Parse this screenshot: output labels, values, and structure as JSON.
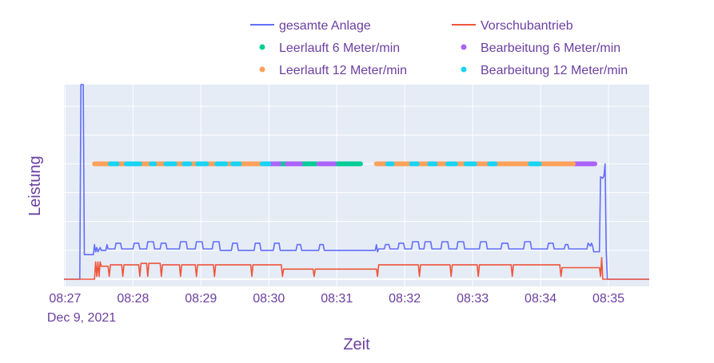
{
  "chart_data": {
    "type": "line",
    "xlabel": "Zeit",
    "ylabel": "Leistung",
    "x_date_label": "Dec 9, 2021",
    "x_ticks": [
      "08:27",
      "08:28",
      "08:29",
      "08:30",
      "08:31",
      "08:32",
      "08:33",
      "08:34",
      "08:35"
    ],
    "xlim": [
      "08:26:59",
      "08:35:36"
    ],
    "ylim": [
      -0.05,
      1.35
    ],
    "y_tick_labels_shown": false,
    "grid": true,
    "legend_position": "top",
    "series": [
      {
        "name": "gesamte Anlage",
        "kind": "line",
        "color": "#636efa",
        "points": [
          [
            "08:26:59",
            0
          ],
          [
            "08:27:13",
            0
          ],
          [
            "08:27:14",
            1.35
          ],
          [
            "08:27:16",
            1.35
          ],
          [
            "08:27:17",
            0.17
          ],
          [
            "08:27:25",
            0.17
          ],
          [
            "08:27:26",
            0.24
          ],
          [
            "08:27:27",
            0.19
          ],
          [
            "08:27:28",
            0.22
          ],
          [
            "08:27:29",
            0.19
          ],
          [
            "08:27:31",
            0.22
          ],
          [
            "08:27:32",
            0.2
          ],
          [
            "08:27:36",
            0.2
          ],
          [
            "08:27:37",
            0.24
          ],
          [
            "08:27:38",
            0.21
          ],
          [
            "08:27:44",
            0.21
          ],
          [
            "08:27:45",
            0.25
          ],
          [
            "08:27:49",
            0.25
          ],
          [
            "08:27:50",
            0.21
          ],
          [
            "08:28:00",
            0.21
          ],
          [
            "08:28:01",
            0.25
          ],
          [
            "08:28:05",
            0.25
          ],
          [
            "08:28:06",
            0.21
          ],
          [
            "08:28:12",
            0.21
          ],
          [
            "08:28:13",
            0.26
          ],
          [
            "08:28:18",
            0.26
          ],
          [
            "08:28:19",
            0.21
          ],
          [
            "08:28:24",
            0.21
          ],
          [
            "08:28:25",
            0.25
          ],
          [
            "08:28:29",
            0.25
          ],
          [
            "08:28:30",
            0.21
          ],
          [
            "08:28:41",
            0.21
          ],
          [
            "08:28:42",
            0.26
          ],
          [
            "08:28:47",
            0.26
          ],
          [
            "08:28:48",
            0.21
          ],
          [
            "08:28:55",
            0.21
          ],
          [
            "08:28:56",
            0.26
          ],
          [
            "08:29:01",
            0.26
          ],
          [
            "08:29:02",
            0.21
          ],
          [
            "08:29:10",
            0.21
          ],
          [
            "08:29:11",
            0.26
          ],
          [
            "08:29:16",
            0.26
          ],
          [
            "08:29:17",
            0.2
          ],
          [
            "08:29:27",
            0.2
          ],
          [
            "08:29:28",
            0.25
          ],
          [
            "08:29:32",
            0.25
          ],
          [
            "08:29:33",
            0.2
          ],
          [
            "08:29:47",
            0.2
          ],
          [
            "08:29:48",
            0.25
          ],
          [
            "08:29:52",
            0.25
          ],
          [
            "08:29:53",
            0.2
          ],
          [
            "08:30:04",
            0.2
          ],
          [
            "08:30:05",
            0.25
          ],
          [
            "08:30:09",
            0.25
          ],
          [
            "08:30:10",
            0.2
          ],
          [
            "08:30:24",
            0.2
          ],
          [
            "08:30:25",
            0.24
          ],
          [
            "08:30:28",
            0.24
          ],
          [
            "08:30:29",
            0.2
          ],
          [
            "08:30:44",
            0.2
          ],
          [
            "08:30:45",
            0.24
          ],
          [
            "08:30:48",
            0.24
          ],
          [
            "08:30:49",
            0.2
          ],
          [
            "08:31:34",
            0.2
          ],
          [
            "08:31:35",
            0.24
          ],
          [
            "08:31:36",
            0.19
          ],
          [
            "08:31:37",
            0.21
          ],
          [
            "08:31:42",
            0.21
          ],
          [
            "08:31:43",
            0.24
          ],
          [
            "08:31:46",
            0.24
          ],
          [
            "08:31:47",
            0.21
          ],
          [
            "08:31:54",
            0.21
          ],
          [
            "08:31:55",
            0.25
          ],
          [
            "08:31:59",
            0.25
          ],
          [
            "08:32:00",
            0.21
          ],
          [
            "08:32:06",
            0.21
          ],
          [
            "08:32:07",
            0.26
          ],
          [
            "08:32:12",
            0.26
          ],
          [
            "08:32:13",
            0.21
          ],
          [
            "08:32:17",
            0.21
          ],
          [
            "08:32:18",
            0.26
          ],
          [
            "08:32:23",
            0.26
          ],
          [
            "08:32:24",
            0.21
          ],
          [
            "08:32:32",
            0.21
          ],
          [
            "08:32:33",
            0.26
          ],
          [
            "08:32:38",
            0.26
          ],
          [
            "08:32:39",
            0.21
          ],
          [
            "08:32:46",
            0.21
          ],
          [
            "08:32:47",
            0.26
          ],
          [
            "08:32:52",
            0.26
          ],
          [
            "08:32:53",
            0.21
          ],
          [
            "08:33:06",
            0.21
          ],
          [
            "08:33:07",
            0.26
          ],
          [
            "08:33:12",
            0.26
          ],
          [
            "08:33:13",
            0.21
          ],
          [
            "08:33:25",
            0.21
          ],
          [
            "08:33:26",
            0.25
          ],
          [
            "08:33:31",
            0.25
          ],
          [
            "08:33:32",
            0.21
          ],
          [
            "08:33:45",
            0.21
          ],
          [
            "08:33:46",
            0.26
          ],
          [
            "08:33:51",
            0.26
          ],
          [
            "08:33:52",
            0.21
          ],
          [
            "08:34:06",
            0.21
          ],
          [
            "08:34:07",
            0.25
          ],
          [
            "08:34:11",
            0.25
          ],
          [
            "08:34:12",
            0.21
          ],
          [
            "08:34:21",
            0.21
          ],
          [
            "08:34:22",
            0.24
          ],
          [
            "08:34:24",
            0.24
          ],
          [
            "08:34:25",
            0.21
          ],
          [
            "08:34:41",
            0.21
          ],
          [
            "08:34:42",
            0.25
          ],
          [
            "08:34:44",
            0.23
          ],
          [
            "08:34:45",
            0.25
          ],
          [
            "08:34:46",
            0.23
          ],
          [
            "08:34:47",
            0.19
          ],
          [
            "08:34:52",
            0.19
          ],
          [
            "08:34:53",
            0.71
          ],
          [
            "08:34:55",
            0.7
          ],
          [
            "08:34:56",
            0.72
          ],
          [
            "08:34:57",
            0.8
          ],
          [
            "08:34:58",
            0.2
          ],
          [
            "08:34:59",
            0
          ],
          [
            "08:35:36",
            0
          ]
        ]
      },
      {
        "name": "Vorschubantrieb",
        "kind": "line",
        "color": "#ef553b",
        "points": [
          [
            "08:26:59",
            0
          ],
          [
            "08:27:26",
            0
          ],
          [
            "08:27:27",
            0.12
          ],
          [
            "08:27:28",
            0.02
          ],
          [
            "08:27:29",
            0.12
          ],
          [
            "08:27:30",
            0.02
          ],
          [
            "08:27:31",
            0.12
          ],
          [
            "08:27:32",
            0.09
          ],
          [
            "08:27:38",
            0.09
          ],
          [
            "08:27:39",
            0.02
          ],
          [
            "08:27:40",
            0.1
          ],
          [
            "08:27:50",
            0.1
          ],
          [
            "08:27:51",
            0.02
          ],
          [
            "08:27:52",
            0.1
          ],
          [
            "08:28:05",
            0.1
          ],
          [
            "08:28:06",
            0.02
          ],
          [
            "08:28:07",
            0.11
          ],
          [
            "08:28:12",
            0.11
          ],
          [
            "08:28:13",
            0.02
          ],
          [
            "08:28:14",
            0.11
          ],
          [
            "08:28:24",
            0.11
          ],
          [
            "08:28:25",
            0.02
          ],
          [
            "08:28:26",
            0.1
          ],
          [
            "08:28:41",
            0.1
          ],
          [
            "08:28:42",
            0.02
          ],
          [
            "08:28:43",
            0.1
          ],
          [
            "08:28:55",
            0.1
          ],
          [
            "08:28:56",
            0.02
          ],
          [
            "08:28:57",
            0.1
          ],
          [
            "08:29:11",
            0.1
          ],
          [
            "08:29:12",
            0.02
          ],
          [
            "08:29:13",
            0.1
          ],
          [
            "08:29:44",
            0.1
          ],
          [
            "08:29:45",
            0.02
          ],
          [
            "08:29:46",
            0.1
          ],
          [
            "08:30:11",
            0.1
          ],
          [
            "08:30:12",
            0.02
          ],
          [
            "08:30:13",
            0.07
          ],
          [
            "08:30:39",
            0.07
          ],
          [
            "08:30:40",
            0.02
          ],
          [
            "08:30:41",
            0.07
          ],
          [
            "08:31:35",
            0.07
          ],
          [
            "08:31:36",
            0.02
          ],
          [
            "08:31:37",
            0.1
          ],
          [
            "08:32:12",
            0.1
          ],
          [
            "08:32:13",
            0.02
          ],
          [
            "08:32:14",
            0.1
          ],
          [
            "08:32:40",
            0.1
          ],
          [
            "08:32:41",
            0.02
          ],
          [
            "08:32:42",
            0.1
          ],
          [
            "08:33:04",
            0.1
          ],
          [
            "08:33:05",
            0.02
          ],
          [
            "08:33:06",
            0.1
          ],
          [
            "08:33:34",
            0.1
          ],
          [
            "08:33:35",
            0.02
          ],
          [
            "08:33:36",
            0.1
          ],
          [
            "08:34:17",
            0.1
          ],
          [
            "08:34:18",
            0.02
          ],
          [
            "08:34:19",
            0.08
          ],
          [
            "08:34:52",
            0.08
          ],
          [
            "08:34:53",
            0.02
          ],
          [
            "08:34:54",
            0.15
          ],
          [
            "08:34:55",
            0
          ],
          [
            "08:35:36",
            0
          ]
        ]
      },
      {
        "name": "Leerlauft 6 Meter/min",
        "kind": "markers",
        "color": "#00cc96",
        "y": 0.8,
        "ranges": [
          [
            "08:30:09",
            "08:30:16"
          ],
          [
            "08:30:28",
            "08:30:42"
          ],
          [
            "08:30:58",
            "08:31:21"
          ]
        ]
      },
      {
        "name": "Bearbeitung 6 Meter/min",
        "kind": "markers",
        "color": "#ab63fa",
        "y": 0.8,
        "ranges": [
          [
            "08:30:01",
            "08:30:09"
          ],
          [
            "08:30:16",
            "08:30:28"
          ],
          [
            "08:30:44",
            "08:30:58"
          ],
          [
            "08:34:30",
            "08:34:48"
          ]
        ]
      },
      {
        "name": "Leerlauft 12 Meter/min",
        "kind": "markers",
        "color": "#ffa15a",
        "y": 0.8,
        "ranges": [
          [
            "08:27:26",
            "08:27:39"
          ],
          [
            "08:27:47",
            "08:27:53"
          ],
          [
            "08:28:07",
            "08:28:15"
          ],
          [
            "08:28:20",
            "08:28:28"
          ],
          [
            "08:28:38",
            "08:28:44"
          ],
          [
            "08:28:51",
            "08:28:56"
          ],
          [
            "08:29:06",
            "08:29:13"
          ],
          [
            "08:29:23",
            "08:29:27"
          ],
          [
            "08:29:35",
            "08:29:53"
          ],
          [
            "08:31:35",
            "08:31:44"
          ],
          [
            "08:31:50",
            "08:32:05"
          ],
          [
            "08:32:12",
            "08:32:21"
          ],
          [
            "08:32:28",
            "08:32:37"
          ],
          [
            "08:32:46",
            "08:32:53"
          ],
          [
            "08:33:03",
            "08:33:14"
          ],
          [
            "08:33:21",
            "08:33:50"
          ],
          [
            "08:34:00",
            "08:34:29"
          ]
        ]
      },
      {
        "name": "Bearbeitung 12 Meter/min",
        "kind": "markers",
        "color": "#19d3f3",
        "y": 0.8,
        "ranges": [
          [
            "08:27:40",
            "08:27:46"
          ],
          [
            "08:27:54",
            "08:28:06"
          ],
          [
            "08:28:16",
            "08:28:19"
          ],
          [
            "08:28:29",
            "08:28:37"
          ],
          [
            "08:28:45",
            "08:28:50"
          ],
          [
            "08:28:57",
            "08:29:05"
          ],
          [
            "08:29:14",
            "08:29:22"
          ],
          [
            "08:29:28",
            "08:29:34"
          ],
          [
            "08:29:54",
            "08:30:00"
          ],
          [
            "08:31:45",
            "08:31:49"
          ],
          [
            "08:32:06",
            "08:32:11"
          ],
          [
            "08:32:22",
            "08:32:27"
          ],
          [
            "08:32:38",
            "08:32:45"
          ],
          [
            "08:32:54",
            "08:33:02"
          ],
          [
            "08:33:15",
            "08:33:20"
          ],
          [
            "08:33:51",
            "08:33:59"
          ]
        ]
      }
    ]
  }
}
